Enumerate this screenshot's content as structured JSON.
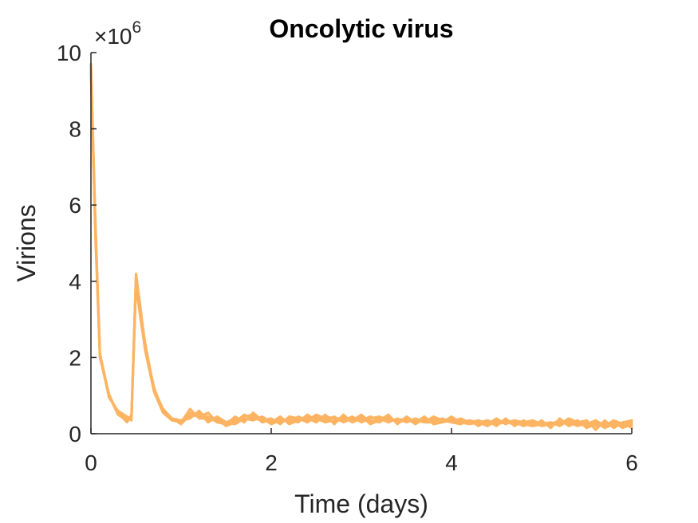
{
  "chart_data": {
    "type": "line",
    "title": "Oncolytic virus",
    "xlabel": "Time (days)",
    "ylabel": "Virions",
    "y_exponent_label": "×10",
    "y_exponent_power": "6",
    "xlim": [
      0,
      6
    ],
    "ylim": [
      0,
      10
    ],
    "x_ticks": [
      0,
      2,
      4,
      6
    ],
    "y_ticks": [
      0,
      2,
      4,
      6,
      8,
      10
    ],
    "x_tick_labels": [
      "0",
      "2",
      "4",
      "6"
    ],
    "y_tick_labels": [
      "0",
      "2",
      "4",
      "6",
      "8",
      "10"
    ],
    "grid": false,
    "color": "#FDB462",
    "series": [
      {
        "x": [
          0,
          0.05,
          0.1,
          0.2,
          0.3,
          0.4,
          0.45,
          0.5,
          0.55,
          0.6,
          0.7,
          0.8,
          0.9,
          1.0,
          1.1,
          1.2,
          1.3,
          1.4,
          1.5,
          1.6,
          1.7,
          1.8,
          1.9,
          2.0,
          2.1,
          2.2,
          2.3,
          2.4,
          2.5,
          2.6,
          2.7,
          2.8,
          2.9,
          3.0,
          3.1,
          3.2,
          3.3,
          3.4,
          3.5,
          3.6,
          3.7,
          3.8,
          3.9,
          4.0,
          4.1,
          4.2,
          4.3,
          4.4,
          4.5,
          4.6,
          4.7,
          4.8,
          4.9,
          5.0,
          5.1,
          5.2,
          5.3,
          5.4,
          5.5,
          5.6,
          5.7,
          5.8,
          5.9,
          6.0
        ],
        "values": [
          9.7,
          5.5,
          2.1,
          1.0,
          0.55,
          0.4,
          0.45,
          4.2,
          3.3,
          2.3,
          1.2,
          0.6,
          0.4,
          0.3,
          0.55,
          0.5,
          0.45,
          0.3,
          0.25,
          0.35,
          0.45,
          0.5,
          0.3,
          0.35,
          0.3,
          0.4,
          0.35,
          0.45,
          0.4,
          0.3,
          0.35,
          0.45,
          0.3,
          0.4,
          0.35,
          0.3,
          0.45,
          0.3,
          0.35,
          0.3,
          0.35,
          0.4,
          0.3,
          0.35,
          0.3,
          0.25,
          0.3,
          0.35,
          0.25,
          0.3,
          0.35,
          0.25,
          0.2,
          0.25,
          0.3,
          0.2,
          0.35,
          0.25,
          0.2,
          0.3,
          0.15,
          0.25,
          0.2,
          0.2
        ]
      },
      {
        "x": [
          0,
          0.05,
          0.1,
          0.2,
          0.3,
          0.4,
          0.45,
          0.5,
          0.55,
          0.6,
          0.7,
          0.8,
          0.9,
          1.0,
          1.1,
          1.2,
          1.3,
          1.4,
          1.5,
          1.6,
          1.7,
          1.8,
          1.9,
          2.0,
          2.1,
          2.2,
          2.3,
          2.4,
          2.5,
          2.6,
          2.7,
          2.8,
          2.9,
          3.0,
          3.1,
          3.2,
          3.3,
          3.4,
          3.5,
          3.6,
          3.7,
          3.8,
          3.9,
          4.0,
          4.1,
          4.2,
          4.3,
          4.4,
          4.5,
          4.6,
          4.7,
          4.8,
          4.9,
          5.0,
          5.1,
          5.2,
          5.3,
          5.4,
          5.5,
          5.6,
          5.7,
          5.8,
          5.9,
          6.0
        ],
        "values": [
          9.6,
          5.3,
          2.0,
          1.05,
          0.5,
          0.35,
          0.4,
          4.0,
          3.1,
          2.2,
          1.1,
          0.55,
          0.35,
          0.35,
          0.4,
          0.6,
          0.35,
          0.4,
          0.2,
          0.3,
          0.5,
          0.4,
          0.35,
          0.3,
          0.4,
          0.3,
          0.45,
          0.35,
          0.5,
          0.4,
          0.3,
          0.4,
          0.35,
          0.5,
          0.3,
          0.4,
          0.3,
          0.4,
          0.3,
          0.4,
          0.3,
          0.3,
          0.4,
          0.3,
          0.25,
          0.35,
          0.3,
          0.2,
          0.35,
          0.3,
          0.25,
          0.3,
          0.25,
          0.3,
          0.2,
          0.3,
          0.25,
          0.35,
          0.15,
          0.25,
          0.3,
          0.2,
          0.3,
          0.35
        ]
      },
      {
        "x": [
          0,
          0.05,
          0.1,
          0.2,
          0.3,
          0.4,
          0.45,
          0.5,
          0.55,
          0.6,
          0.7,
          0.8,
          0.9,
          1.0,
          1.1,
          1.2,
          1.3,
          1.4,
          1.5,
          1.6,
          1.7,
          1.8,
          1.9,
          2.0,
          2.1,
          2.2,
          2.3,
          2.4,
          2.5,
          2.6,
          2.7,
          2.8,
          2.9,
          3.0,
          3.1,
          3.2,
          3.3,
          3.4,
          3.5,
          3.6,
          3.7,
          3.8,
          3.9,
          4.0,
          4.1,
          4.2,
          4.3,
          4.4,
          4.5,
          4.6,
          4.7,
          4.8,
          4.9,
          5.0,
          5.1,
          5.2,
          5.3,
          5.4,
          5.5,
          5.6,
          5.7,
          5.8,
          5.9,
          6.0
        ],
        "values": [
          9.5,
          5.2,
          2.05,
          0.95,
          0.6,
          0.45,
          0.35,
          4.1,
          3.2,
          2.4,
          1.15,
          0.65,
          0.4,
          0.25,
          0.5,
          0.45,
          0.55,
          0.3,
          0.3,
          0.4,
          0.35,
          0.45,
          0.4,
          0.25,
          0.35,
          0.35,
          0.3,
          0.5,
          0.35,
          0.45,
          0.4,
          0.35,
          0.45,
          0.3,
          0.4,
          0.45,
          0.35,
          0.35,
          0.4,
          0.25,
          0.4,
          0.35,
          0.35,
          0.4,
          0.35,
          0.3,
          0.25,
          0.3,
          0.3,
          0.35,
          0.3,
          0.2,
          0.3,
          0.2,
          0.25,
          0.35,
          0.3,
          0.2,
          0.3,
          0.2,
          0.25,
          0.3,
          0.15,
          0.25
        ]
      },
      {
        "x": [
          0,
          0.05,
          0.1,
          0.2,
          0.3,
          0.4,
          0.45,
          0.5,
          0.55,
          0.6,
          0.7,
          0.8,
          0.9,
          1.0,
          1.1,
          1.2,
          1.3,
          1.4,
          1.5,
          1.6,
          1.7,
          1.8,
          1.9,
          2.0,
          2.1,
          2.2,
          2.3,
          2.4,
          2.5,
          2.6,
          2.7,
          2.8,
          2.9,
          3.0,
          3.1,
          3.2,
          3.3,
          3.4,
          3.5,
          3.6,
          3.7,
          3.8,
          3.9,
          4.0,
          4.1,
          4.2,
          4.3,
          4.4,
          4.5,
          4.6,
          4.7,
          4.8,
          4.9,
          5.0,
          5.1,
          5.2,
          5.3,
          5.4,
          5.5,
          5.6,
          5.7,
          5.8,
          5.9,
          6.0
        ],
        "values": [
          9.65,
          5.4,
          2.1,
          1.0,
          0.55,
          0.3,
          0.5,
          4.15,
          3.25,
          2.3,
          1.2,
          0.6,
          0.35,
          0.3,
          0.65,
          0.4,
          0.4,
          0.35,
          0.25,
          0.45,
          0.3,
          0.55,
          0.35,
          0.4,
          0.25,
          0.45,
          0.4,
          0.3,
          0.45,
          0.35,
          0.45,
          0.3,
          0.4,
          0.35,
          0.45,
          0.35,
          0.4,
          0.3,
          0.35,
          0.35,
          0.3,
          0.45,
          0.35,
          0.3,
          0.4,
          0.3,
          0.35,
          0.25,
          0.4,
          0.25,
          0.35,
          0.3,
          0.35,
          0.25,
          0.3,
          0.25,
          0.4,
          0.3,
          0.25,
          0.35,
          0.2,
          0.35,
          0.25,
          0.3
        ]
      },
      {
        "x": [
          0,
          0.05,
          0.1,
          0.2,
          0.3,
          0.4,
          0.45,
          0.5,
          0.55,
          0.6,
          0.7,
          0.8,
          0.9,
          1.0,
          1.1,
          1.2,
          1.3,
          1.4,
          1.5,
          1.6,
          1.7,
          1.8,
          1.9,
          2.0,
          2.1,
          2.2,
          2.3,
          2.4,
          2.5,
          2.6,
          2.7,
          2.8,
          2.9,
          3.0,
          3.1,
          3.2,
          3.3,
          3.4,
          3.5,
          3.6,
          3.7,
          3.8,
          3.9,
          4.0,
          4.1,
          4.2,
          4.3,
          4.4,
          4.5,
          4.6,
          4.7,
          4.8,
          4.9,
          5.0,
          5.1,
          5.2,
          5.3,
          5.4,
          5.5,
          5.6,
          5.7,
          5.8,
          5.9,
          6.0
        ],
        "values": [
          9.55,
          5.1,
          2.0,
          1.0,
          0.5,
          0.4,
          0.4,
          3.9,
          3.0,
          2.25,
          1.1,
          0.55,
          0.4,
          0.35,
          0.45,
          0.55,
          0.3,
          0.45,
          0.3,
          0.25,
          0.4,
          0.35,
          0.45,
          0.3,
          0.45,
          0.25,
          0.35,
          0.4,
          0.3,
          0.5,
          0.25,
          0.5,
          0.3,
          0.45,
          0.25,
          0.35,
          0.5,
          0.25,
          0.45,
          0.3,
          0.45,
          0.25,
          0.3,
          0.45,
          0.3,
          0.35,
          0.2,
          0.35,
          0.2,
          0.4,
          0.2,
          0.35,
          0.2,
          0.35,
          0.15,
          0.4,
          0.2,
          0.3,
          0.35,
          0.1,
          0.35,
          0.15,
          0.3,
          0.15
        ]
      }
    ]
  }
}
